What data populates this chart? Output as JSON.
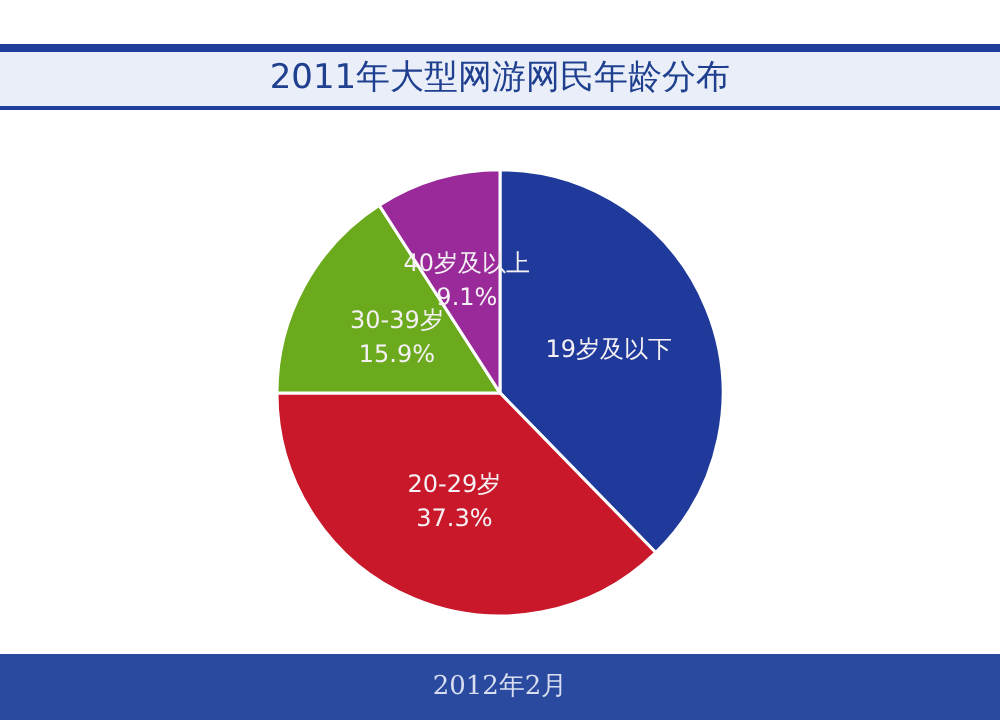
{
  "chart_data": {
    "type": "pie",
    "title": "2011年大型网游网民年龄分布",
    "categories": [
      "19岁及以下",
      "20-29岁",
      "30-39岁",
      "40岁及以上"
    ],
    "values": [
      37.7,
      37.3,
      15.9,
      9.1
    ],
    "colors": [
      "#1f3a9a",
      "#c8182a",
      "#6aaa1c",
      "#9a2a9a"
    ],
    "value_labels": [
      null,
      "37.3%",
      "15.9%",
      "9.1%"
    ],
    "legend": false,
    "annotations": [
      "2012年2月"
    ]
  }
}
